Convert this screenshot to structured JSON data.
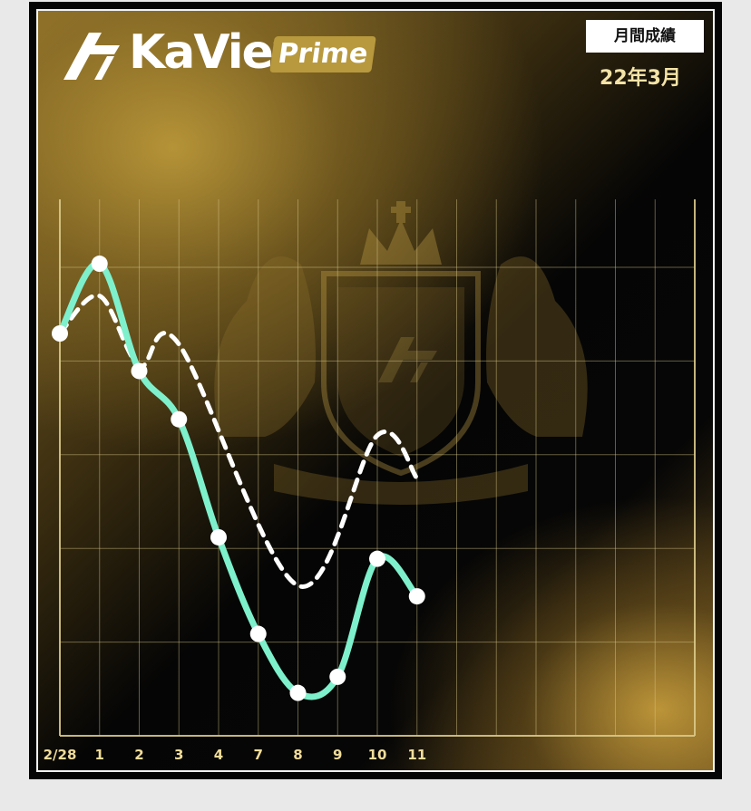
{
  "header": {
    "logo_text": "KaView",
    "badge": "Prime",
    "period_box": "月間成績",
    "period_value": "22年3月"
  },
  "colors": {
    "gold": "#c9a54a",
    "series_main": "#7ef0cc",
    "series_compare": "#ffffff",
    "grid": "#d9c98a"
  },
  "chart_data": {
    "type": "line",
    "categories": [
      "2/28",
      "1",
      "2",
      "3",
      "4",
      "7",
      "8",
      "9",
      "10",
      "11"
    ],
    "total_slots": 16,
    "ylim": [
      0,
      10
    ],
    "grid": true,
    "y_axis_labels": false,
    "series": [
      {
        "style": "solid",
        "markers": true,
        "values": [
          7.5,
          8.8,
          6.8,
          5.9,
          3.7,
          1.9,
          0.8,
          1.1,
          3.3,
          2.6
        ]
      },
      {
        "style": "dashed",
        "markers": false,
        "values": [
          7.5,
          8.2,
          6.9,
          7.3,
          null,
          null,
          2.8,
          null,
          5.6,
          4.8
        ]
      }
    ]
  }
}
